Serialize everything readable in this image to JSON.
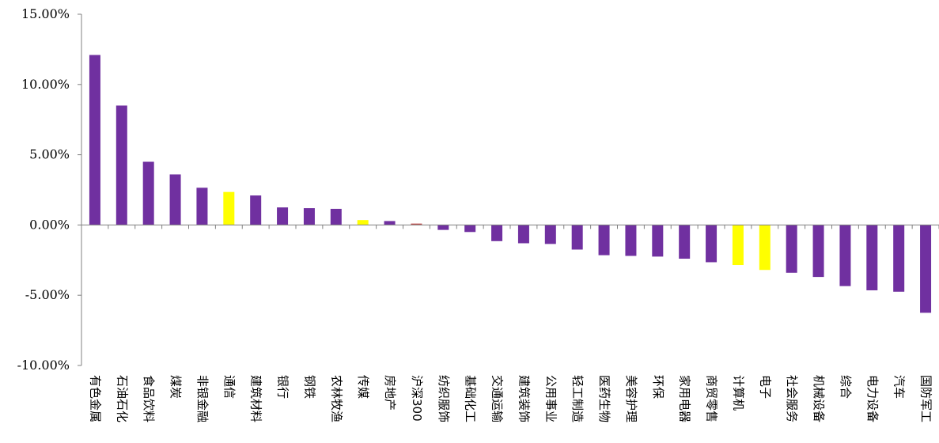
{
  "chart_data": {
    "type": "bar",
    "title": "",
    "xlabel": "",
    "ylabel": "",
    "ylim": [
      -10,
      15
    ],
    "yticks": [
      15,
      10,
      5,
      0,
      -5,
      -10
    ],
    "ytick_labels": [
      "15.00%",
      "10.00%",
      "5.00%",
      "0.00%",
      "-5.00%",
      "-10.00%"
    ],
    "grid": false,
    "legend": "none",
    "colors": {
      "default": "#7030A0",
      "highlight": "#FFFF00",
      "benchmark": "#C0504D"
    },
    "categories": [
      "有色金属",
      "石油石化",
      "食品饮料",
      "煤炭",
      "非银金融",
      "通信",
      "建筑材料",
      "银行",
      "钢铁",
      "农林牧渔",
      "传媒",
      "房地产",
      "沪深300",
      "纺织服饰",
      "基础化工",
      "交通运输",
      "建筑装饰",
      "公用事业",
      "轻工制造",
      "医药生物",
      "美容护理",
      "环保",
      "家用电器",
      "商贸零售",
      "计算机",
      "电子",
      "社会服务",
      "机械设备",
      "综合",
      "电力设备",
      "汽车",
      "国防军工"
    ],
    "values": [
      12.1,
      8.5,
      4.5,
      3.6,
      2.65,
      2.35,
      2.1,
      1.25,
      1.2,
      1.15,
      0.35,
      0.28,
      0.1,
      -0.35,
      -0.5,
      -1.15,
      -1.3,
      -1.35,
      -1.75,
      -2.15,
      -2.2,
      -2.25,
      -2.4,
      -2.65,
      -2.85,
      -3.2,
      -3.4,
      -3.7,
      -4.35,
      -4.65,
      -4.75,
      -6.25
    ],
    "bar_colors": [
      "#7030A0",
      "#7030A0",
      "#7030A0",
      "#7030A0",
      "#7030A0",
      "#FFFF00",
      "#7030A0",
      "#7030A0",
      "#7030A0",
      "#7030A0",
      "#FFFF00",
      "#7030A0",
      "#C0504D",
      "#7030A0",
      "#7030A0",
      "#7030A0",
      "#7030A0",
      "#7030A0",
      "#7030A0",
      "#7030A0",
      "#7030A0",
      "#7030A0",
      "#7030A0",
      "#7030A0",
      "#FFFF00",
      "#FFFF00",
      "#7030A0",
      "#7030A0",
      "#7030A0",
      "#7030A0",
      "#7030A0",
      "#7030A0"
    ]
  }
}
